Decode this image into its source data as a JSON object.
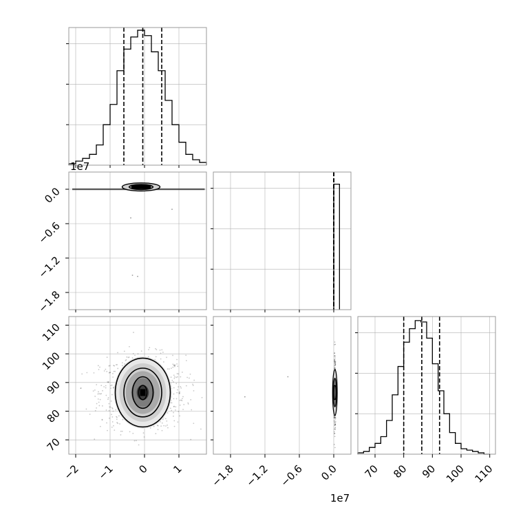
{
  "chart_data": [
    {
      "type": "histogram",
      "panel": "p1-marginal",
      "x_range": [
        -2.2,
        1.8
      ],
      "x_ticks": [
        -2,
        -1,
        0,
        1
      ],
      "y_range": [
        0,
        1.02
      ],
      "grid": true,
      "quantiles": [
        -0.6,
        -0.05,
        0.5
      ],
      "bin_edges": [
        -2.2,
        -2.0,
        -1.8,
        -1.6,
        -1.4,
        -1.2,
        -1.0,
        -0.8,
        -0.6,
        -0.4,
        -0.2,
        0.0,
        0.2,
        0.4,
        0.6,
        0.8,
        1.0,
        1.2,
        1.4,
        1.6,
        1.8
      ],
      "counts": [
        0.01,
        0.03,
        0.05,
        0.08,
        0.15,
        0.3,
        0.45,
        0.7,
        0.86,
        0.95,
        1.0,
        0.96,
        0.84,
        0.7,
        0.48,
        0.3,
        0.17,
        0.08,
        0.04,
        0.02
      ]
    },
    {
      "type": "contour",
      "panel": "p2-vs-p1",
      "x_range": [
        -2.2,
        1.8
      ],
      "y_range": [
        -2.1,
        0.3
      ],
      "y_ticks": [
        0.0,
        -0.6,
        -1.2,
        -1.8
      ],
      "y_tick_labels": [
        "0.0",
        "−0.6",
        "−1.2",
        "−1.8"
      ],
      "y_offset_label": "1e7",
      "grid": true,
      "center": [
        -0.1,
        0.04
      ],
      "contour_half_widths": [
        [
          0.55,
          0.07
        ],
        [
          0.35,
          0.045
        ],
        [
          0.2,
          0.025
        ]
      ],
      "spread_line": [
        -2.1,
        1.75
      ],
      "outliers": [
        [
          -0.35,
          -1.5
        ],
        [
          -0.2,
          -1.52
        ],
        [
          0.8,
          -0.35
        ],
        [
          -0.4,
          -0.5
        ]
      ]
    },
    {
      "type": "histogram",
      "panel": "p2-marginal",
      "x_range": [
        -2.1,
        0.3
      ],
      "y_range": [
        0,
        1.02
      ],
      "grid": true,
      "quantiles": [
        0.0,
        0.0,
        0.0
      ],
      "bin_edges": [
        0.0,
        0.1
      ],
      "counts": [
        0.93
      ]
    },
    {
      "type": "contour",
      "panel": "p3-vs-p1",
      "x_range": [
        -2.2,
        1.8
      ],
      "y_range": [
        65,
        113
      ],
      "y_ticks": [
        70,
        80,
        90,
        100,
        110
      ],
      "grid": true,
      "center": [
        -0.05,
        86.5
      ],
      "contour_half_widths": [
        [
          0.8,
          12.0
        ],
        [
          0.55,
          8.5
        ],
        [
          0.3,
          5.5
        ],
        [
          0.12,
          2.5
        ]
      ]
    },
    {
      "type": "contour",
      "panel": "p3-vs-p2",
      "x_range": [
        -2.1,
        0.3
      ],
      "x_ticks": [
        -1.8,
        -1.2,
        -0.6,
        0.0
      ],
      "x_tick_labels": [
        "−1.8",
        "−1.2",
        "−0.6",
        "0.0"
      ],
      "x_offset_label": "1e7",
      "y_range": [
        65,
        113
      ],
      "grid": true,
      "center": [
        0.02,
        86.5
      ],
      "contour_half_widths": [
        [
          0.04,
          8.0
        ],
        [
          0.025,
          5.0
        ],
        [
          0.012,
          2.5
        ]
      ],
      "outliers": [
        [
          -1.55,
          85.0
        ],
        [
          -0.8,
          92.0
        ]
      ]
    },
    {
      "type": "histogram",
      "panel": "p3-marginal",
      "x_range": [
        64,
        112
      ],
      "x_ticks": [
        70,
        80,
        90,
        100,
        110
      ],
      "y_range": [
        0,
        1.02
      ],
      "grid": true,
      "quantiles": [
        80,
        86.3,
        92.5
      ],
      "bin_edges": [
        64,
        66,
        68,
        70,
        72,
        74,
        76,
        78,
        80,
        82,
        84,
        86,
        88,
        90,
        92,
        94,
        96,
        98,
        100,
        102,
        104,
        106,
        108,
        110
      ],
      "counts": [
        0.01,
        0.02,
        0.05,
        0.08,
        0.13,
        0.25,
        0.44,
        0.65,
        0.83,
        0.93,
        0.99,
        0.98,
        0.86,
        0.67,
        0.47,
        0.3,
        0.16,
        0.08,
        0.04,
        0.03,
        0.02,
        0.01,
        0.0
      ]
    }
  ]
}
